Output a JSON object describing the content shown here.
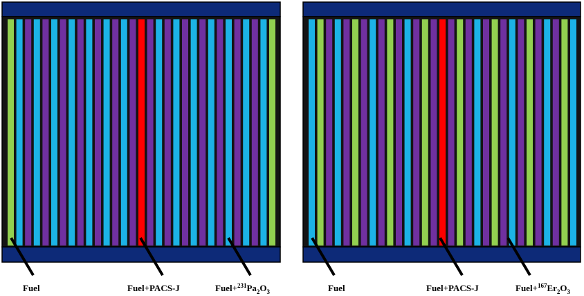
{
  "colors": {
    "background": "#ffffff",
    "frame_border": "#000000",
    "end_plate": "#0d2a78",
    "gap": "#141414",
    "fuel": "#92d050",
    "coolant": "#1cb3e6",
    "fuel_with_absorber": "#7030a0",
    "pacs_j": "#ff0000"
  },
  "panels": [
    {
      "id": "left",
      "rods": [
        "fuel",
        "water",
        "absorber",
        "water",
        "absorber",
        "water",
        "absorber",
        "water",
        "absorber",
        "water",
        "absorber",
        "water",
        "absorber",
        "water",
        "absorber",
        "pacs",
        "absorber",
        "water",
        "absorber",
        "water",
        "absorber",
        "water",
        "absorber",
        "water",
        "absorber",
        "water",
        "absorber",
        "water",
        "absorber",
        "water",
        "fuel"
      ],
      "labels": {
        "fuel": "Fuel",
        "pacs": "Fuel+PACS-J",
        "absorber_prefix": "Fuel+",
        "absorber_isotope_mass": "231",
        "absorber_element": "Pa",
        "absorber_sub1": "2",
        "absorber_oxygen": "O",
        "absorber_sub2": "3"
      }
    },
    {
      "id": "right",
      "rods": [
        "water",
        "fuel",
        "absorber",
        "water",
        "absorber",
        "fuel",
        "absorber",
        "water",
        "absorber",
        "fuel",
        "absorber",
        "water",
        "absorber",
        "fuel",
        "absorber",
        "pacs",
        "absorber",
        "fuel",
        "absorber",
        "water",
        "absorber",
        "fuel",
        "absorber",
        "water",
        "absorber",
        "fuel",
        "absorber",
        "water",
        "absorber",
        "fuel",
        "water"
      ],
      "labels": {
        "fuel": "Fuel",
        "pacs": "Fuel+PACS-J",
        "absorber_prefix": "Fuel+",
        "absorber_isotope_mass": "167",
        "absorber_element": "Er",
        "absorber_sub1": "2",
        "absorber_oxygen": "O",
        "absorber_sub2": "3"
      }
    }
  ]
}
